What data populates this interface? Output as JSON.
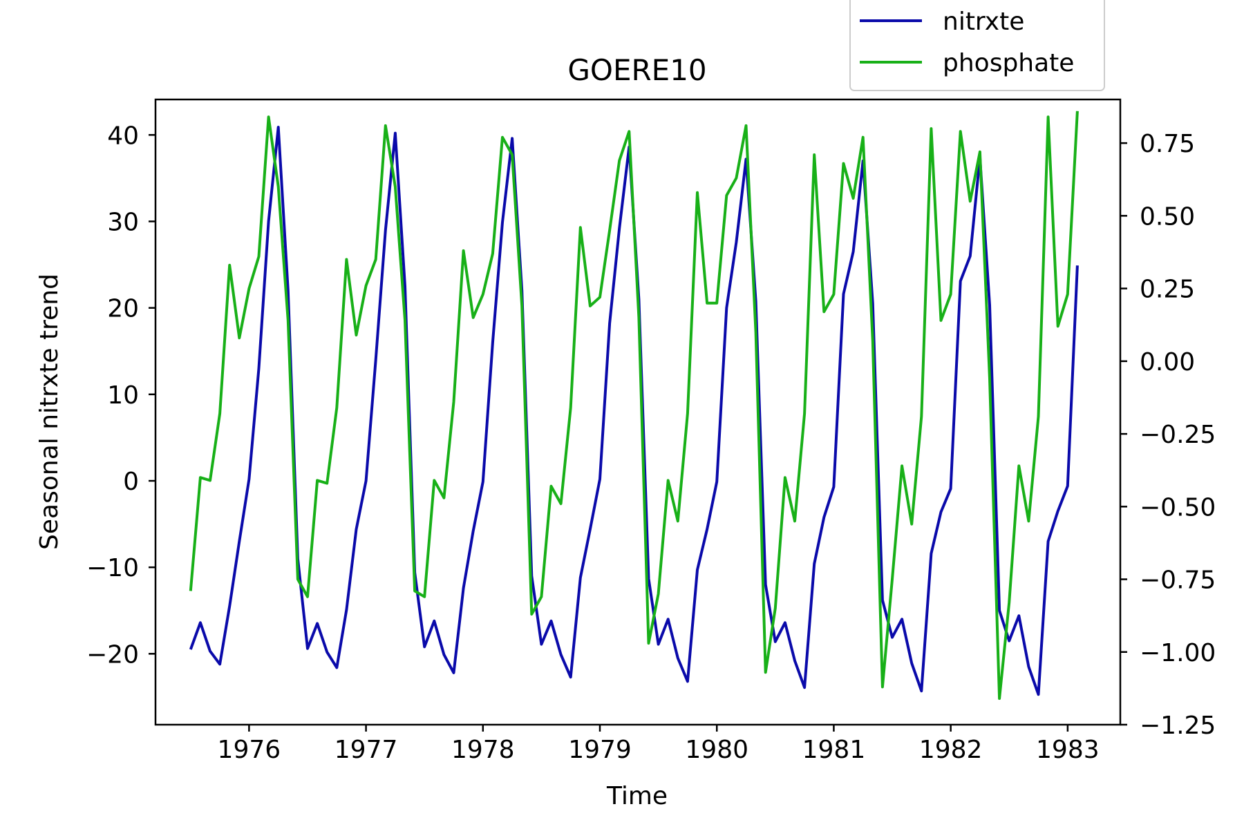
{
  "chart_data": {
    "type": "line",
    "title": "GOERE10",
    "xlabel": "Time",
    "ylabel": "Seasonal nitrxte trend",
    "y2label": "",
    "xlim": [
      1975.2,
      1983.45
    ],
    "ylim": [
      -28.2,
      44.1
    ],
    "y2lim": [
      -1.25,
      0.9
    ],
    "x_ticks": [
      1976,
      1977,
      1978,
      1979,
      1980,
      1981,
      1982,
      1983
    ],
    "y_ticks": [
      -20,
      -10,
      0,
      10,
      20,
      30,
      40
    ],
    "y2_ticks": [
      -1.25,
      -1.0,
      -0.75,
      -0.5,
      -0.25,
      0.0,
      0.25,
      0.5,
      0.75
    ],
    "y2_tick_labels": [
      "−1.25",
      "−1.00",
      "−0.75",
      "−0.50",
      "−0.25",
      "0.00",
      "0.25",
      "0.50",
      "0.75"
    ],
    "y_tick_labels": [
      "−20",
      "−10",
      "0",
      "10",
      "20",
      "30",
      "40"
    ],
    "x_tick_labels": [
      "1976",
      "1977",
      "1978",
      "1979",
      "1980",
      "1981",
      "1982",
      "1983"
    ],
    "x_start": 1975.5,
    "x_step": 0.08333,
    "grid": false,
    "legend_position": "top-right",
    "series": [
      {
        "name": "nitrxte",
        "axis": "left",
        "color": "#0a0aaa",
        "values": [
          -19.5,
          -16.4,
          -19.7,
          -21.2,
          -14.5,
          -7.0,
          0.2,
          13.0,
          30.0,
          40.9,
          22.0,
          -9.0,
          -19.4,
          -16.5,
          -19.8,
          -21.6,
          -14.9,
          -5.6,
          0.0,
          14.0,
          29.0,
          40.2,
          22.5,
          -10.6,
          -19.2,
          -16.2,
          -20.1,
          -22.2,
          -12.4,
          -5.8,
          -0.1,
          16.0,
          29.9,
          39.6,
          22.0,
          -11.0,
          -18.9,
          -16.2,
          -20.1,
          -22.7,
          -11.2,
          -5.6,
          0.2,
          18.2,
          29.2,
          38.6,
          21.0,
          -11.3,
          -18.9,
          -16.0,
          -20.5,
          -23.2,
          -10.3,
          -5.6,
          -0.1,
          20.0,
          27.6,
          37.2,
          20.8,
          -12.0,
          -18.6,
          -16.4,
          -20.8,
          -23.9,
          -9.6,
          -4.2,
          -0.7,
          21.6,
          26.5,
          37.0,
          20.5,
          -13.8,
          -18.1,
          -16.0,
          -21.1,
          -24.3,
          -8.4,
          -3.6,
          -0.9,
          23.1,
          26.0,
          37.4,
          20.3,
          -15.0,
          -18.5,
          -15.6,
          -21.5,
          -24.7,
          -7.0,
          -3.5,
          -0.6,
          24.9
        ]
      },
      {
        "name": "phosphate",
        "axis": "right",
        "color": "#18b018",
        "values": [
          -0.79,
          -0.4,
          -0.41,
          -0.18,
          0.33,
          0.08,
          0.25,
          0.36,
          0.84,
          0.6,
          0.14,
          -0.75,
          -0.81,
          -0.41,
          -0.42,
          -0.16,
          0.35,
          0.09,
          0.26,
          0.35,
          0.81,
          0.6,
          0.14,
          -0.79,
          -0.81,
          -0.41,
          -0.47,
          -0.14,
          0.38,
          0.15,
          0.23,
          0.37,
          0.77,
          0.71,
          0.19,
          -0.87,
          -0.81,
          -0.43,
          -0.49,
          -0.16,
          0.46,
          0.19,
          0.22,
          0.45,
          0.69,
          0.79,
          0.15,
          -0.97,
          -0.8,
          -0.41,
          -0.55,
          -0.18,
          0.58,
          0.2,
          0.2,
          0.57,
          0.63,
          0.81,
          0.1,
          -1.07,
          -0.85,
          -0.4,
          -0.55,
          -0.18,
          0.71,
          0.17,
          0.23,
          0.68,
          0.56,
          0.77,
          0.07,
          -1.12,
          -0.75,
          -0.36,
          -0.56,
          -0.19,
          0.8,
          0.14,
          0.23,
          0.79,
          0.55,
          0.72,
          -0.06,
          -1.16,
          -0.83,
          -0.36,
          -0.55,
          -0.19,
          0.84,
          0.12,
          0.23,
          0.86
        ]
      }
    ]
  }
}
